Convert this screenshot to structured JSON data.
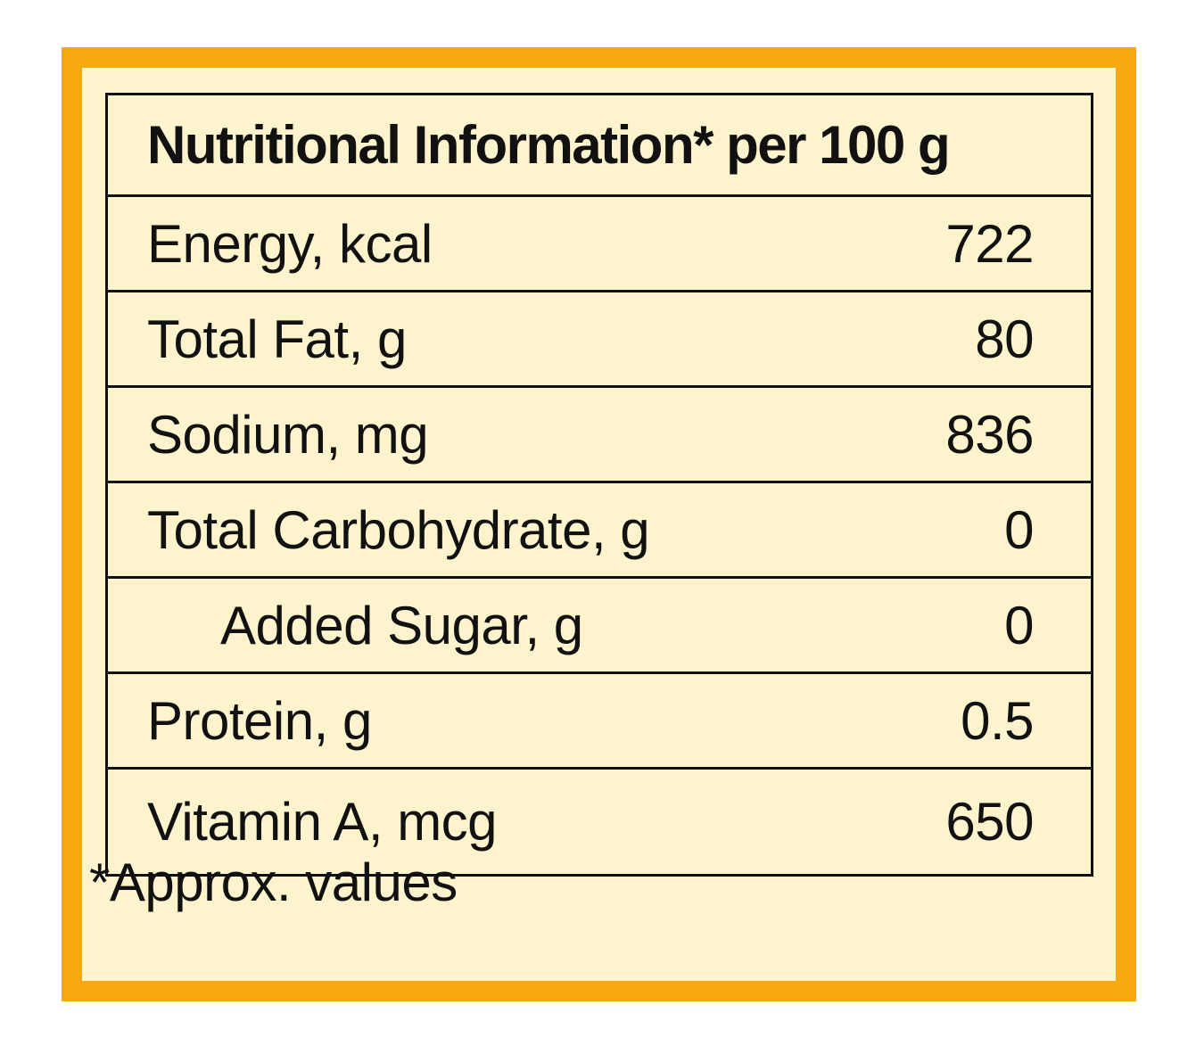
{
  "panel": {
    "border_color": "#f6a80f",
    "background_color": "#fdf3cc"
  },
  "table": {
    "title": "Nutritional Information* per 100 g",
    "rows": [
      {
        "label": "Energy, kcal",
        "value": "722"
      },
      {
        "label": "Total Fat, g",
        "value": "80"
      },
      {
        "label": "Sodium, mg",
        "value": "836"
      },
      {
        "label": "Total Carbohydrate, g",
        "value": "0"
      },
      {
        "label": "Added Sugar, g",
        "value": "0"
      },
      {
        "label": "Protein, g",
        "value": "0.5"
      },
      {
        "label": "Vitamin A, mcg",
        "value": "650"
      }
    ]
  },
  "footnote": "*Approx. values"
}
